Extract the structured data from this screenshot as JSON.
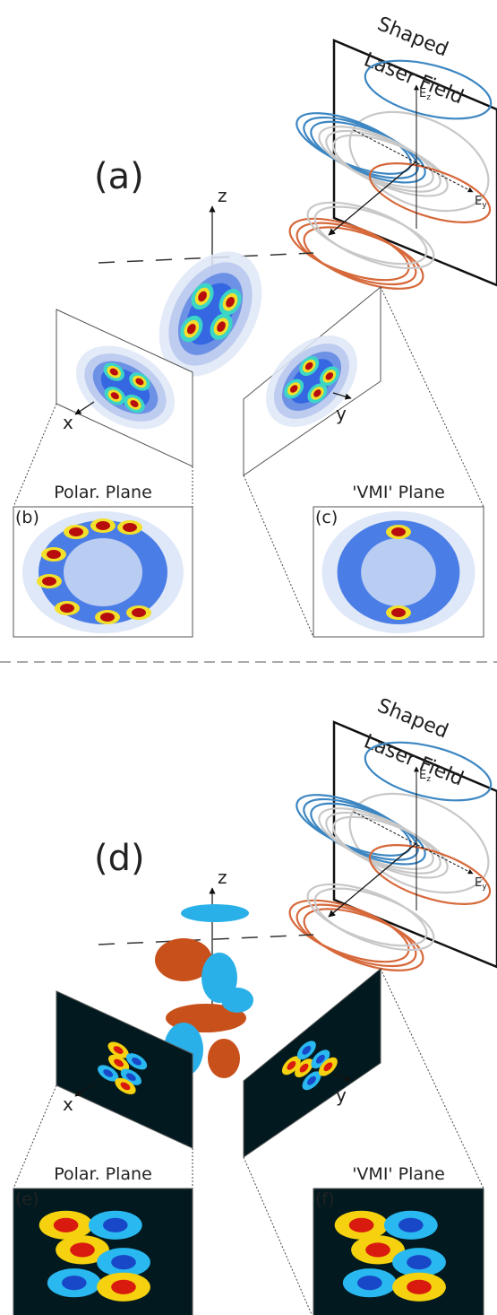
{
  "panels": [
    {
      "label": "(a)",
      "laser": {
        "line1": "Shaped",
        "line2": "Laser Field"
      },
      "field_axes": {
        "ez": {
          "base": "E",
          "sub": "z"
        },
        "ey": {
          "base": "E",
          "sub": "y"
        }
      },
      "axes": {
        "z": "z",
        "x": "x",
        "y": "y"
      },
      "insets": [
        {
          "title": "Polar. Plane",
          "label": "(b)"
        },
        {
          "title": "'VMI' Plane",
          "label": "(c)"
        }
      ]
    },
    {
      "label": "(d)",
      "laser": {
        "line1": "Shaped",
        "line2": "Laser Field"
      },
      "field_axes": {
        "ez": {
          "base": "E",
          "sub": "z"
        },
        "ey": {
          "base": "E",
          "sub": "y"
        }
      },
      "axes": {
        "z": "z",
        "x": "x",
        "y": "y"
      },
      "insets": [
        {
          "title": "Polar. Plane",
          "label": "(e)"
        },
        {
          "title": "'VMI' Plane",
          "label": "(f)"
        }
      ]
    }
  ]
}
